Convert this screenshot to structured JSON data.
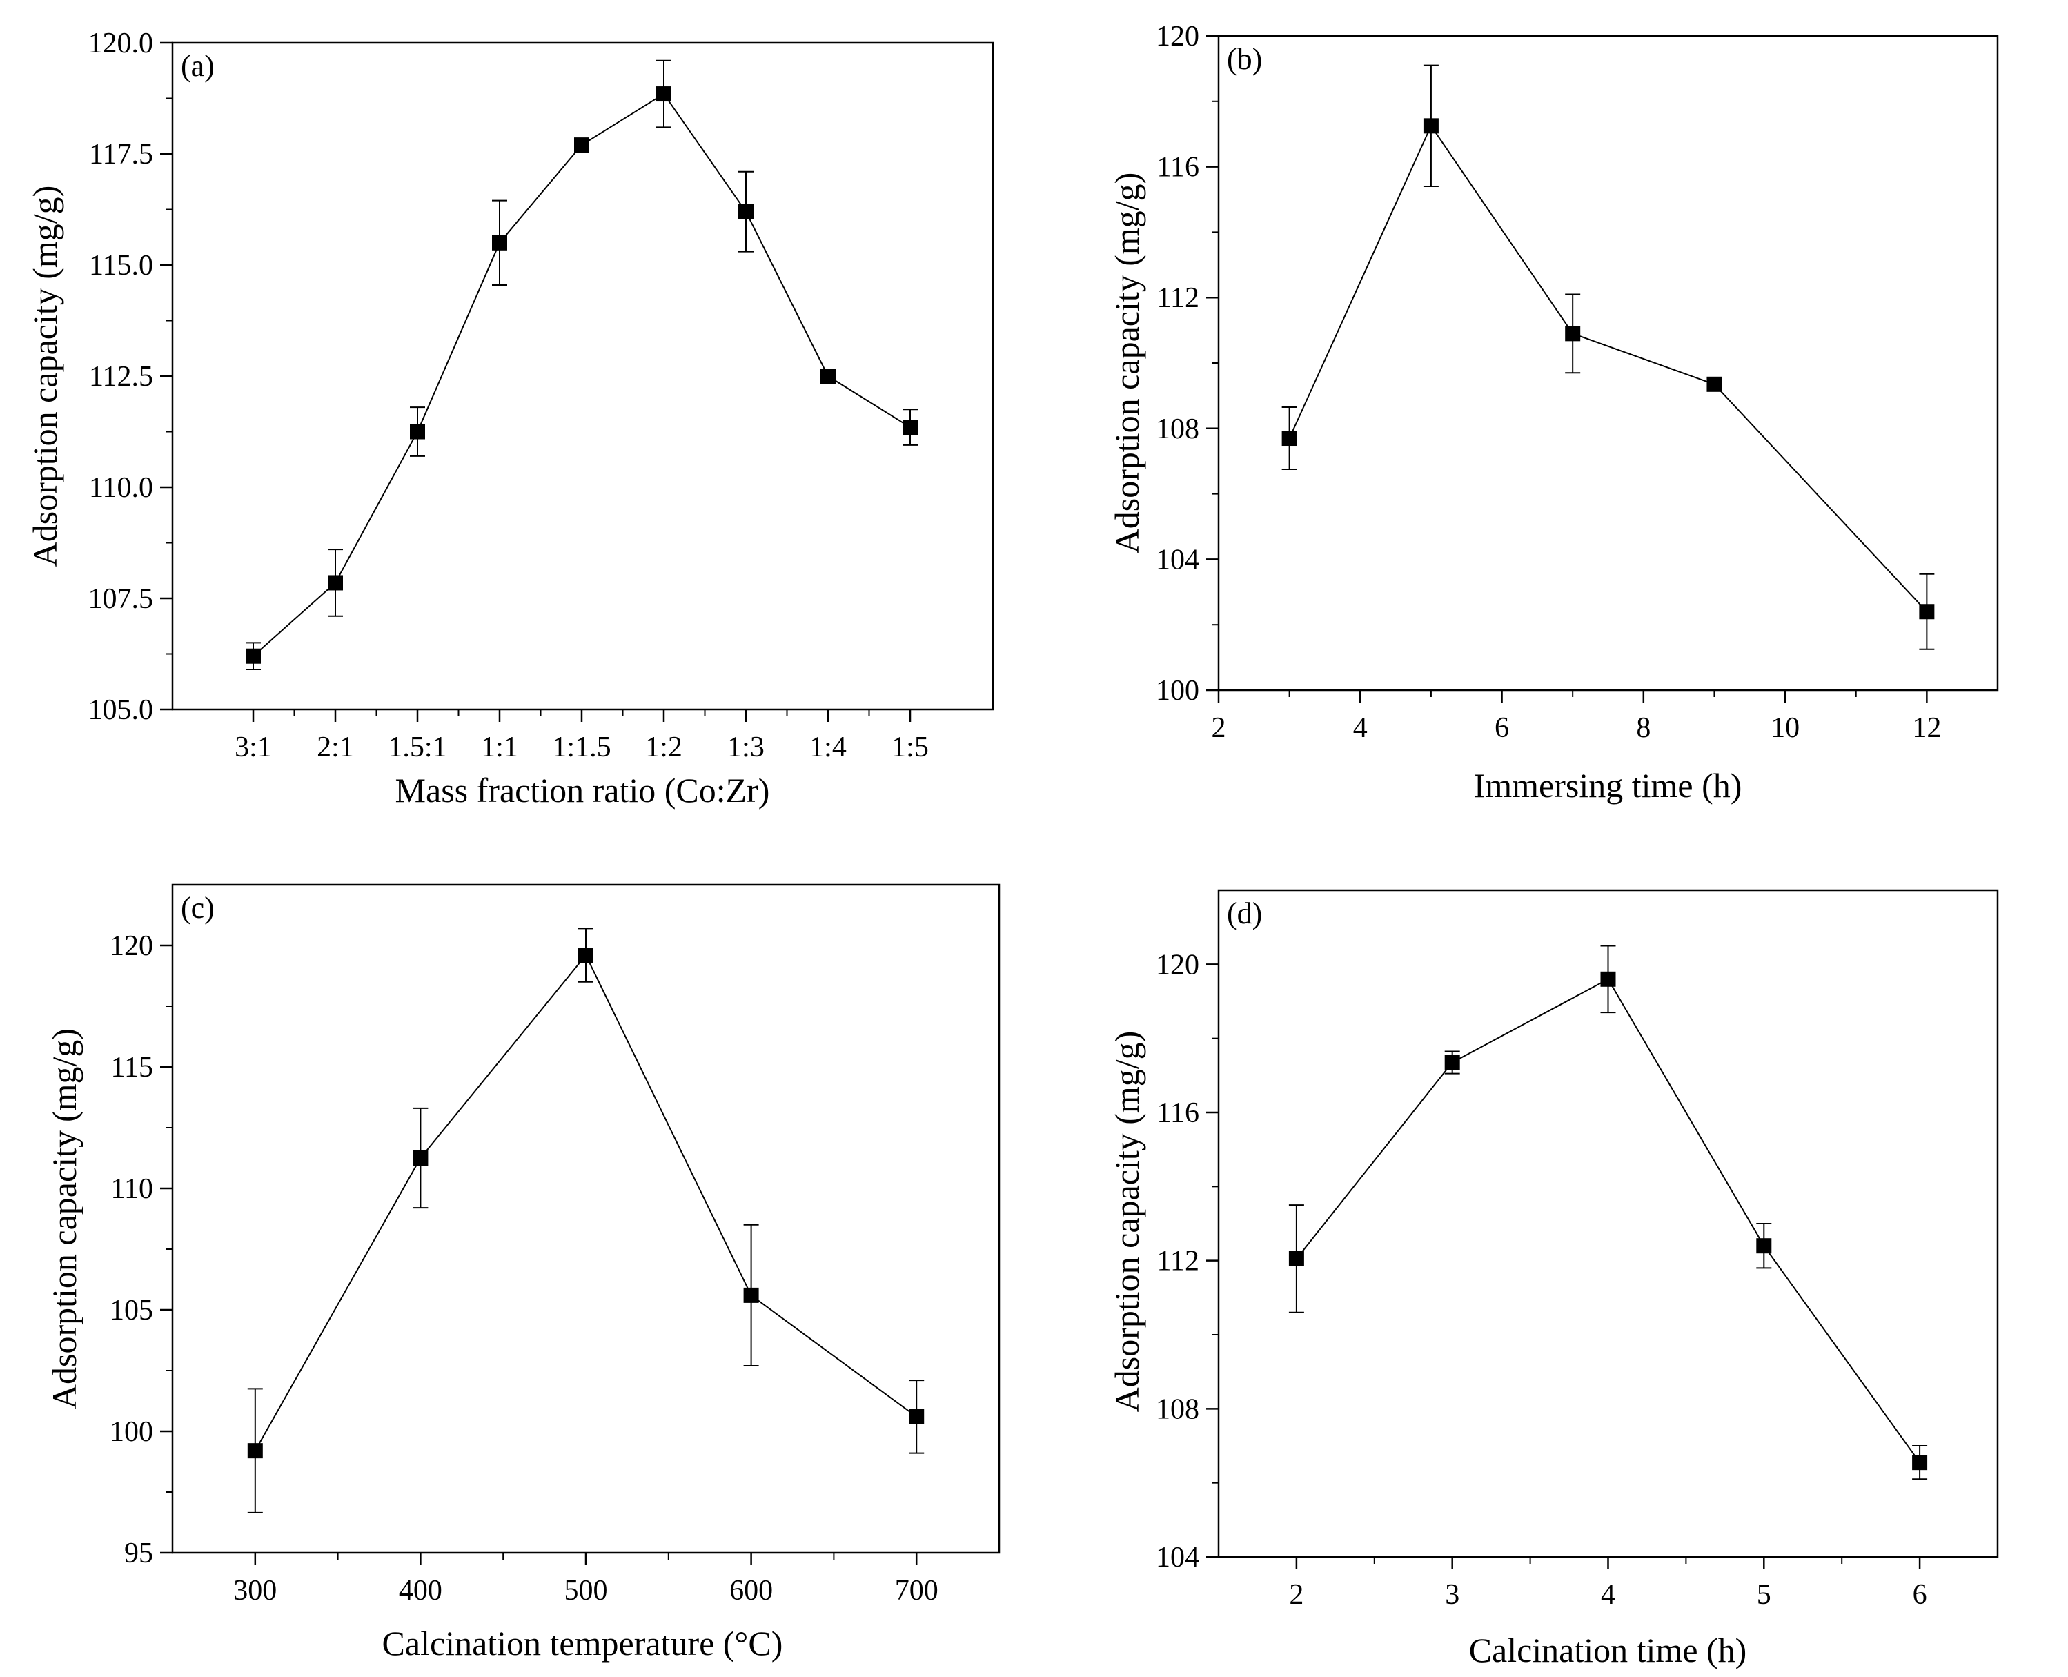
{
  "chart_data": [
    {
      "type": "line",
      "panel_label": "(a)",
      "xlabel": "Mass fraction ratio (Co:Zr)",
      "ylabel": "Adsorption capacity (mg/g)",
      "categories": [
        "3:1",
        "2:1",
        "1.5:1",
        "1:1",
        "1:1.5",
        "1:2",
        "1:3",
        "1:4",
        "1:5"
      ],
      "values": [
        106.2,
        107.85,
        111.25,
        115.5,
        117.7,
        118.85,
        116.2,
        112.5,
        111.35
      ],
      "errors": [
        0.3,
        0.75,
        0.55,
        0.95,
        0.0,
        0.75,
        0.9,
        0.0,
        0.4
      ],
      "ylim": [
        105.0,
        120.0
      ],
      "yticks": [
        105.0,
        107.5,
        110.0,
        112.5,
        115.0,
        117.5,
        120.0
      ],
      "ytick_labels": [
        "105.0",
        "107.5",
        "110.0",
        "112.5",
        "115.0",
        "117.5",
        "120.0"
      ],
      "marker": "square",
      "color": "#000000"
    },
    {
      "type": "line",
      "panel_label": "(b)",
      "xlabel": "Immersing time (h)",
      "ylabel": "Adsorption capacity (mg/g)",
      "x": [
        3,
        5,
        7,
        9,
        12
      ],
      "values": [
        107.7,
        117.25,
        110.9,
        109.35,
        102.4
      ],
      "errors": [
        0.95,
        1.85,
        1.2,
        0.0,
        1.15
      ],
      "xlim": [
        2,
        13
      ],
      "xticks": [
        2,
        4,
        6,
        8,
        10,
        12
      ],
      "ylim": [
        100,
        120
      ],
      "yticks": [
        100,
        104,
        108,
        112,
        116,
        120
      ],
      "ytick_labels": [
        "100",
        "104",
        "108",
        "112",
        "116",
        "120"
      ],
      "marker": "square",
      "color": "#000000"
    },
    {
      "type": "line",
      "panel_label": "(c)",
      "xlabel": "Calcination temperature (°C)",
      "ylabel": "Adsorption capacity",
      "ylabel_unit": "(mg/g)",
      "x": [
        300,
        400,
        500,
        600,
        700
      ],
      "values": [
        99.2,
        111.25,
        119.6,
        105.6,
        100.6
      ],
      "errors": [
        2.55,
        2.05,
        1.1,
        2.9,
        1.5
      ],
      "xlim": [
        250,
        750
      ],
      "xticks": [
        300,
        400,
        500,
        600,
        700
      ],
      "ylim": [
        95,
        122.5
      ],
      "yticks": [
        95,
        100,
        105,
        110,
        115,
        120
      ],
      "ytick_labels": [
        "95",
        "100",
        "105",
        "110",
        "115",
        "120"
      ],
      "marker": "square",
      "color": "#000000"
    },
    {
      "type": "line",
      "panel_label": "(d)",
      "xlabel": "Calcination time (h)",
      "ylabel": "Adsorption capacity (mg/g)",
      "x": [
        2,
        3,
        4,
        5,
        6
      ],
      "values": [
        112.05,
        117.35,
        119.6,
        112.4,
        106.55
      ],
      "errors": [
        1.45,
        0.3,
        0.9,
        0.6,
        0.45
      ],
      "xlim": [
        1.5,
        6.5
      ],
      "xticks": [
        2,
        3,
        4,
        5,
        6
      ],
      "ylim": [
        104,
        122
      ],
      "yticks": [
        104,
        108,
        112,
        116,
        120
      ],
      "ytick_labels": [
        "104",
        "108",
        "112",
        "116",
        "120"
      ],
      "marker": "square",
      "color": "#000000"
    }
  ]
}
